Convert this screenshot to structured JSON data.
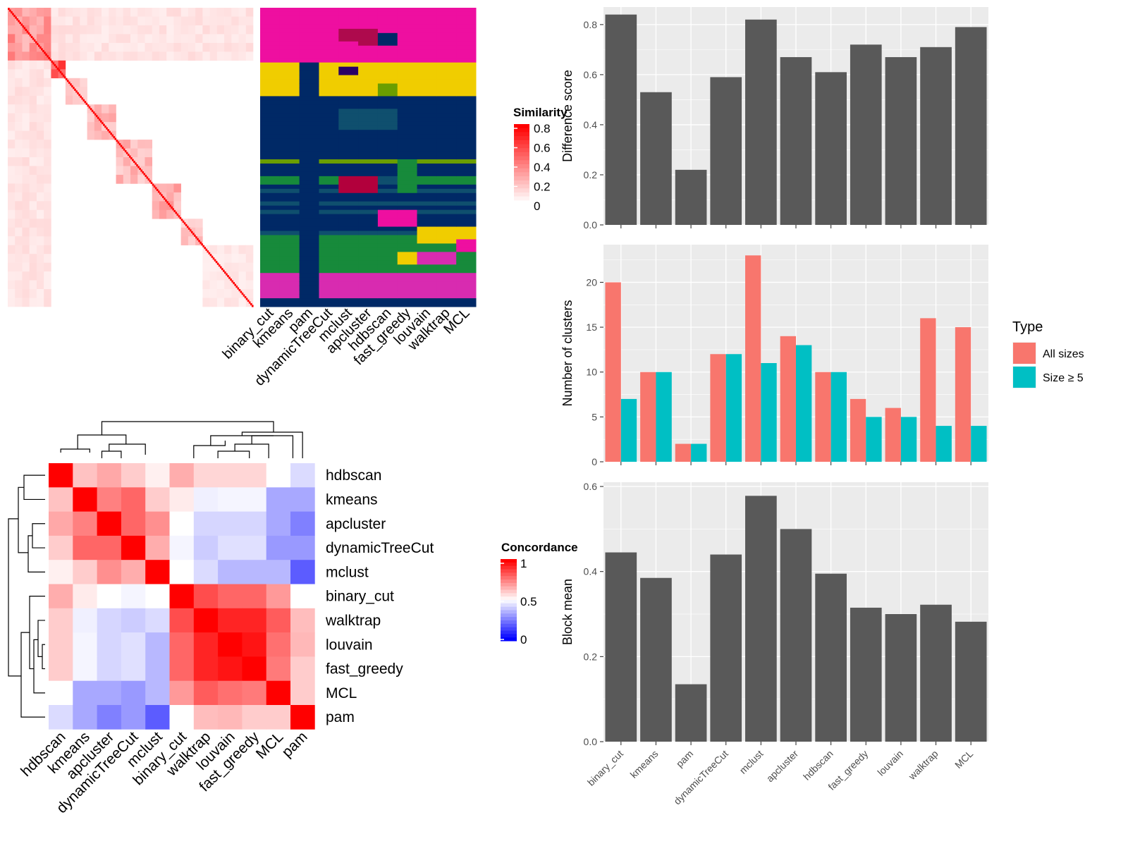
{
  "chart_data": [
    {
      "type": "heatmap",
      "legend_title": "Similarity",
      "legend_ticks": [
        "0.8",
        "0.6",
        "0.4",
        "0.2",
        "0"
      ],
      "colors": {
        "high": "#ff0000",
        "low": "#ffffff"
      },
      "n_terms": 170,
      "blocks": [
        {
          "from": 0,
          "to": 26,
          "level": 0.45
        },
        {
          "from": 26,
          "to": 40,
          "level": 0.75
        },
        {
          "from": 40,
          "to": 52,
          "level": 0.25
        },
        {
          "from": 52,
          "to": 72,
          "level": 0.3
        },
        {
          "from": 72,
          "to": 96,
          "level": 0.3
        },
        {
          "from": 96,
          "to": 118,
          "level": 0.35
        },
        {
          "from": 118,
          "to": 134,
          "level": 0.25
        },
        {
          "from": 134,
          "to": 170,
          "level": 0.1
        }
      ]
    },
    {
      "type": "heatmap",
      "legend_title": "",
      "methods": [
        "binary_cut",
        "kmeans",
        "pam",
        "dynamicTreeCut",
        "mclust",
        "apcluster",
        "hdbscan",
        "fast_greedy",
        "louvain",
        "walktrap",
        "MCL"
      ],
      "palette": [
        "#ee0fa0",
        "#f0cd00",
        "#002966",
        "#6b9e00",
        "#178a3b",
        "#0f4f6e",
        "#b2003c",
        "#ae0a4d",
        "#2a0066",
        "#d82bb0"
      ],
      "base_profile": [
        0,
        0,
        0,
        0,
        0,
        0,
        0,
        0,
        0,
        0,
        0,
        0,
        0,
        1,
        1,
        1,
        1,
        1,
        1,
        1,
        1,
        2,
        2,
        2,
        2,
        2,
        2,
        2,
        2,
        2,
        2,
        2,
        2,
        2,
        2,
        2,
        3,
        2,
        2,
        2,
        4,
        4,
        2,
        5,
        2,
        2,
        5,
        2,
        5,
        2,
        2,
        2,
        2,
        5,
        4,
        4,
        4,
        4,
        4,
        4,
        4,
        4,
        4,
        9,
        9,
        9,
        9,
        9,
        9,
        2,
        2
      ],
      "overrides": {
        "1": [
          [
            13,
            14,
            7
          ],
          [
            0,
            13,
            0
          ],
          [
            13,
            21,
            1
          ]
        ],
        "2": [
          [
            0,
            13,
            0
          ],
          [
            13,
            71,
            2
          ]
        ],
        "4": [
          [
            5,
            8,
            7
          ],
          [
            14,
            16,
            8
          ],
          [
            24,
            29,
            5
          ],
          [
            40,
            44,
            6
          ]
        ],
        "5": [
          [
            5,
            9,
            7
          ],
          [
            24,
            29,
            5
          ],
          [
            40,
            44,
            6
          ]
        ],
        "6": [
          [
            6,
            9,
            2
          ],
          [
            18,
            21,
            3
          ],
          [
            24,
            29,
            5
          ],
          [
            40,
            42,
            5
          ],
          [
            48,
            52,
            0
          ]
        ],
        "7": [
          [
            36,
            44,
            4
          ],
          [
            48,
            52,
            0
          ],
          [
            58,
            61,
            1
          ]
        ],
        "8": [
          [
            52,
            56,
            1
          ],
          [
            58,
            61,
            9
          ]
        ],
        "9": [
          [
            52,
            56,
            1
          ],
          [
            58,
            61,
            9
          ]
        ],
        "10": [
          [
            52,
            56,
            1
          ],
          [
            55,
            58,
            0
          ]
        ]
      }
    },
    {
      "type": "heatmap",
      "legend_title": "Concordance",
      "legend_ticks": [
        "1",
        "0.5",
        "0"
      ],
      "colors": {
        "high": "#ff0000",
        "mid": "#ffffff",
        "low": "#0000ff"
      },
      "rows": [
        "hdbscan",
        "kmeans",
        "apcluster",
        "dynamicTreeCut",
        "mclust",
        "binary_cut",
        "walktrap",
        "louvain",
        "fast_greedy",
        "MCL",
        "pam"
      ],
      "cols": [
        "hdbscan",
        "kmeans",
        "apcluster",
        "dynamicTreeCut",
        "mclust",
        "binary_cut",
        "walktrap",
        "louvain",
        "fast_greedy",
        "MCL",
        "pam"
      ],
      "values": [
        [
          1.0,
          0.62,
          0.67,
          0.6,
          0.53,
          0.66,
          0.58,
          0.58,
          0.58,
          0.5,
          0.43
        ],
        [
          0.62,
          1.0,
          0.75,
          0.8,
          0.6,
          0.54,
          0.47,
          0.48,
          0.48,
          0.33,
          0.33
        ],
        [
          0.67,
          0.75,
          1.0,
          0.8,
          0.72,
          0.5,
          0.42,
          0.42,
          0.42,
          0.33,
          0.25
        ],
        [
          0.6,
          0.8,
          0.8,
          1.0,
          0.66,
          0.48,
          0.4,
          0.44,
          0.44,
          0.3,
          0.3
        ],
        [
          0.53,
          0.6,
          0.72,
          0.66,
          1.0,
          0.5,
          0.43,
          0.36,
          0.36,
          0.36,
          0.18
        ],
        [
          0.66,
          0.54,
          0.5,
          0.48,
          0.5,
          1.0,
          0.85,
          0.8,
          0.8,
          0.7,
          0.5
        ],
        [
          0.6,
          0.47,
          0.42,
          0.4,
          0.43,
          0.85,
          1.0,
          0.93,
          0.93,
          0.82,
          0.63
        ],
        [
          0.6,
          0.48,
          0.42,
          0.44,
          0.36,
          0.8,
          0.93,
          1.0,
          0.96,
          0.78,
          0.64
        ],
        [
          0.6,
          0.48,
          0.42,
          0.44,
          0.36,
          0.8,
          0.93,
          0.96,
          1.0,
          0.76,
          0.6
        ],
        [
          0.5,
          0.33,
          0.33,
          0.3,
          0.36,
          0.7,
          0.82,
          0.78,
          0.76,
          1.0,
          0.6
        ],
        [
          0.43,
          0.33,
          0.25,
          0.3,
          0.18,
          0.5,
          0.63,
          0.64,
          0.6,
          0.6,
          1.0
        ]
      ]
    },
    {
      "type": "bar",
      "categories": [
        "binary_cut",
        "kmeans",
        "pam",
        "dynamicTreeCut",
        "mclust",
        "apcluster",
        "hdbscan",
        "fast_greedy",
        "louvain",
        "walktrap",
        "MCL"
      ],
      "values": [
        0.84,
        0.53,
        0.22,
        0.59,
        0.82,
        0.67,
        0.61,
        0.72,
        0.67,
        0.71,
        0.79
      ],
      "ylabel": "Difference score",
      "ylim": [
        0,
        0.87
      ],
      "yticks": [
        "0.0",
        "0.2",
        "0.4",
        "0.6",
        "0.8"
      ],
      "color": "#595959"
    },
    {
      "type": "bar",
      "categories": [
        "binary_cut",
        "kmeans",
        "pam",
        "dynamicTreeCut",
        "mclust",
        "apcluster",
        "hdbscan",
        "fast_greedy",
        "louvain",
        "walktrap",
        "MCL"
      ],
      "series": [
        {
          "name": "All sizes",
          "values": [
            20,
            10,
            2,
            12,
            23,
            14,
            10,
            7,
            6,
            16,
            15
          ],
          "color": "#f8766d"
        },
        {
          "name": "Size ≥ 5",
          "values": [
            7,
            10,
            2,
            12,
            11,
            13,
            10,
            5,
            5,
            4,
            4
          ],
          "color": "#00bfc4"
        }
      ],
      "ylabel": "Number of clusters",
      "ylim": [
        0,
        24.2
      ],
      "yticks": [
        "0",
        "5",
        "10",
        "15",
        "20"
      ],
      "legend_title": "Type",
      "legend": "right"
    },
    {
      "type": "bar",
      "categories": [
        "binary_cut",
        "kmeans",
        "pam",
        "dynamicTreeCut",
        "mclust",
        "apcluster",
        "hdbscan",
        "fast_greedy",
        "louvain",
        "walktrap",
        "MCL"
      ],
      "values": [
        0.445,
        0.385,
        0.135,
        0.44,
        0.578,
        0.5,
        0.395,
        0.315,
        0.3,
        0.322,
        0.282
      ],
      "ylabel": "Block mean",
      "ylim": [
        0,
        0.61
      ],
      "yticks": [
        "0.0",
        "0.2",
        "0.4",
        "0.6"
      ],
      "color": "#595959"
    }
  ]
}
